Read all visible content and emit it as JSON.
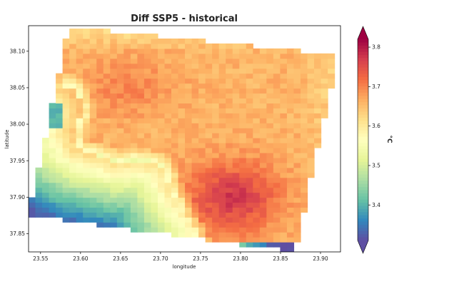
{
  "chart_data": {
    "type": "heatmap",
    "title": "Diff SSP5 - historical",
    "xlabel": "longitude",
    "ylabel": "latitude",
    "xlim": [
      23.535,
      23.925
    ],
    "ylim": [
      37.825,
      38.135
    ],
    "x_ticks": [
      "23.55",
      "23.60",
      "23.65",
      "23.70",
      "23.75",
      "23.80",
      "23.85",
      "23.90"
    ],
    "y_ticks": [
      "37.85",
      "37.90",
      "37.95",
      "38.00",
      "38.05",
      "38.10"
    ],
    "colorbar": {
      "label": "°C",
      "range": [
        3.31,
        3.82
      ],
      "ticks": [
        "3.4",
        "3.5",
        "3.6",
        "3.7",
        "3.8"
      ],
      "colormap": "Spectral_r",
      "extend": "both"
    },
    "grid": false,
    "domain_corners": [
      {
        "lon": 23.585,
        "lat": 38.133
      },
      {
        "lon": 23.922,
        "lat": 38.095
      },
      {
        "lon": 23.868,
        "lat": 37.825
      },
      {
        "lon": 23.535,
        "lat": 37.875
      }
    ],
    "coastline": [
      [
        23.585,
        38.052
      ],
      [
        23.592,
        38.048
      ],
      [
        23.6,
        38.03
      ],
      [
        23.6,
        38.012
      ],
      [
        23.592,
        37.995
      ],
      [
        23.59,
        37.982
      ],
      [
        23.595,
        37.968
      ],
      [
        23.61,
        37.96
      ],
      [
        23.632,
        37.953
      ],
      [
        23.648,
        37.948
      ],
      [
        23.67,
        37.952
      ],
      [
        23.69,
        37.948
      ],
      [
        23.7,
        37.943
      ],
      [
        23.708,
        37.928
      ],
      [
        23.712,
        37.912
      ],
      [
        23.72,
        37.895
      ],
      [
        23.728,
        37.876
      ],
      [
        23.738,
        37.858
      ],
      [
        23.745,
        37.84
      ]
    ],
    "western_bay": [
      [
        23.557,
        38.04
      ],
      [
        23.575,
        38.03
      ],
      [
        23.582,
        38.01
      ],
      [
        23.572,
        37.995
      ],
      [
        23.552,
        37.988
      ]
    ]
  }
}
